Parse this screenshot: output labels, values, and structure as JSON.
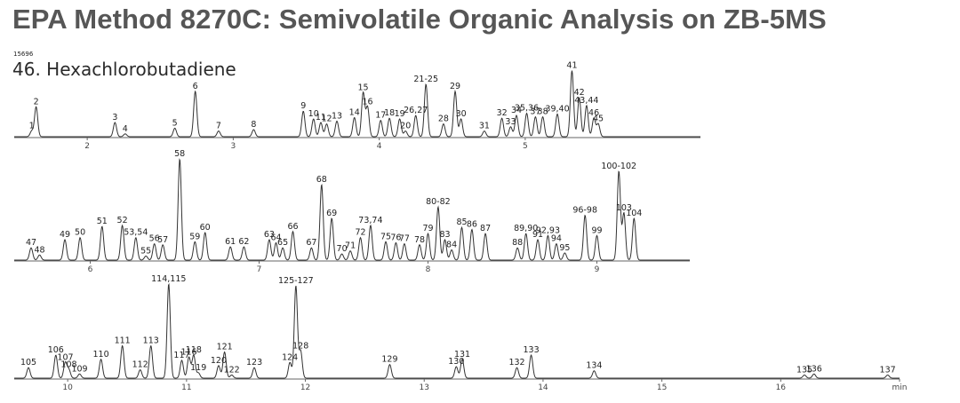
{
  "title": "EPA Method 8270C: Semivolatile Organic Analysis on ZB-5MS",
  "sample_id": "15696",
  "compound_label": "46. Hexachlorobutadiene",
  "colors": {
    "title": "#565656",
    "trace": "#333333",
    "axis": "#666666"
  },
  "chart_data": [
    {
      "type": "line",
      "panel": 1,
      "x_range": [
        1.5,
        6.2
      ],
      "x_ticks": [
        {
          "x": 2,
          "label": "2"
        },
        {
          "x": 3,
          "label": "3"
        },
        {
          "x": 4,
          "label": "4"
        },
        {
          "x": 5,
          "label": "5"
        }
      ],
      "peaks": [
        {
          "label": "1",
          "rt": 1.62,
          "h": 0.08
        },
        {
          "label": "2",
          "rt": 1.65,
          "h": 0.42
        },
        {
          "label": "3",
          "rt": 2.19,
          "h": 0.2
        },
        {
          "label": "4",
          "rt": 2.26,
          "h": 0.04
        },
        {
          "label": "5",
          "rt": 2.6,
          "h": 0.12
        },
        {
          "label": "6",
          "rt": 2.74,
          "h": 0.64
        },
        {
          "label": "7",
          "rt": 2.9,
          "h": 0.08
        },
        {
          "label": "8",
          "rt": 3.14,
          "h": 0.1
        },
        {
          "label": "9",
          "rt": 3.48,
          "h": 0.36
        },
        {
          "label": "10",
          "rt": 3.55,
          "h": 0.25
        },
        {
          "label": "11",
          "rt": 3.6,
          "h": 0.2
        },
        {
          "label": "12",
          "rt": 3.64,
          "h": 0.18
        },
        {
          "label": "13",
          "rt": 3.71,
          "h": 0.22
        },
        {
          "label": "14",
          "rt": 3.83,
          "h": 0.27
        },
        {
          "label": "15",
          "rt": 3.89,
          "h": 0.62
        },
        {
          "label": "16",
          "rt": 3.92,
          "h": 0.42
        },
        {
          "label": "17",
          "rt": 4.01,
          "h": 0.23
        },
        {
          "label": "18",
          "rt": 4.07,
          "h": 0.26
        },
        {
          "label": "19",
          "rt": 4.14,
          "h": 0.25
        },
        {
          "label": "20",
          "rt": 4.18,
          "h": 0.08
        },
        {
          "label": "21-25",
          "rt": 4.32,
          "h": 0.74
        },
        {
          "label": "26,27",
          "rt": 4.25,
          "h": 0.3
        },
        {
          "label": "28",
          "rt": 4.44,
          "h": 0.18
        },
        {
          "label": "29",
          "rt": 4.52,
          "h": 0.64
        },
        {
          "label": "30",
          "rt": 4.56,
          "h": 0.25
        },
        {
          "label": "31",
          "rt": 4.72,
          "h": 0.08
        },
        {
          "label": "32",
          "rt": 4.84,
          "h": 0.26
        },
        {
          "label": "33",
          "rt": 4.9,
          "h": 0.14
        },
        {
          "label": "34",
          "rt": 4.94,
          "h": 0.3
        },
        {
          "label": "35,36",
          "rt": 5.01,
          "h": 0.33
        },
        {
          "label": "37",
          "rt": 5.07,
          "h": 0.28
        },
        {
          "label": "38",
          "rt": 5.12,
          "h": 0.28
        },
        {
          "label": "39,40",
          "rt": 5.22,
          "h": 0.32
        },
        {
          "label": "41",
          "rt": 5.32,
          "h": 0.93
        },
        {
          "label": "42",
          "rt": 5.37,
          "h": 0.55
        },
        {
          "label": "43,44",
          "rt": 5.42,
          "h": 0.44
        },
        {
          "label": "46",
          "rt": 5.47,
          "h": 0.26
        },
        {
          "label": "45",
          "rt": 5.5,
          "h": 0.18
        }
      ]
    },
    {
      "type": "line",
      "panel": 2,
      "x_range": [
        5.55,
        9.55
      ],
      "x_ticks": [
        {
          "x": 6,
          "label": "6"
        },
        {
          "x": 7,
          "label": "7"
        },
        {
          "x": 8,
          "label": "8"
        },
        {
          "x": 9,
          "label": "9"
        }
      ],
      "peaks": [
        {
          "label": "47",
          "rt": 5.65,
          "h": 0.12
        },
        {
          "label": "48",
          "rt": 5.7,
          "h": 0.05
        },
        {
          "label": "49",
          "rt": 5.85,
          "h": 0.2
        },
        {
          "label": "50",
          "rt": 5.94,
          "h": 0.22
        },
        {
          "label": "51",
          "rt": 6.07,
          "h": 0.33
        },
        {
          "label": "52",
          "rt": 6.19,
          "h": 0.34
        },
        {
          "label": "53,54",
          "rt": 6.27,
          "h": 0.22
        },
        {
          "label": "55",
          "rt": 6.33,
          "h": 0.04
        },
        {
          "label": "56",
          "rt": 6.38,
          "h": 0.16
        },
        {
          "label": "57",
          "rt": 6.43,
          "h": 0.15
        },
        {
          "label": "58",
          "rt": 6.53,
          "h": 0.99
        },
        {
          "label": "59",
          "rt": 6.62,
          "h": 0.18
        },
        {
          "label": "60",
          "rt": 6.68,
          "h": 0.27
        },
        {
          "label": "61",
          "rt": 6.83,
          "h": 0.13
        },
        {
          "label": "62",
          "rt": 6.91,
          "h": 0.13
        },
        {
          "label": "63",
          "rt": 7.06,
          "h": 0.2
        },
        {
          "label": "64",
          "rt": 7.1,
          "h": 0.17
        },
        {
          "label": "65",
          "rt": 7.14,
          "h": 0.12
        },
        {
          "label": "66",
          "rt": 7.2,
          "h": 0.28
        },
        {
          "label": "67",
          "rt": 7.31,
          "h": 0.12
        },
        {
          "label": "68",
          "rt": 7.37,
          "h": 0.74
        },
        {
          "label": "69",
          "rt": 7.43,
          "h": 0.41
        },
        {
          "label": "70",
          "rt": 7.49,
          "h": 0.06
        },
        {
          "label": "71",
          "rt": 7.54,
          "h": 0.09
        },
        {
          "label": "72",
          "rt": 7.6,
          "h": 0.22
        },
        {
          "label": "73,74",
          "rt": 7.66,
          "h": 0.34
        },
        {
          "label": "75",
          "rt": 7.75,
          "h": 0.18
        },
        {
          "label": "76",
          "rt": 7.81,
          "h": 0.17
        },
        {
          "label": "77",
          "rt": 7.86,
          "h": 0.16
        },
        {
          "label": "78",
          "rt": 7.95,
          "h": 0.15
        },
        {
          "label": "79",
          "rt": 8.0,
          "h": 0.26
        },
        {
          "label": "80-82",
          "rt": 8.06,
          "h": 0.52
        },
        {
          "label": "83",
          "rt": 8.1,
          "h": 0.2
        },
        {
          "label": "84",
          "rt": 8.14,
          "h": 0.1
        },
        {
          "label": "85",
          "rt": 8.2,
          "h": 0.32
        },
        {
          "label": "86",
          "rt": 8.26,
          "h": 0.3
        },
        {
          "label": "87",
          "rt": 8.34,
          "h": 0.26
        },
        {
          "label": "88",
          "rt": 8.53,
          "h": 0.12
        },
        {
          "label": "89,90",
          "rt": 8.58,
          "h": 0.26
        },
        {
          "label": "91",
          "rt": 8.65,
          "h": 0.2
        },
        {
          "label": "92,93",
          "rt": 8.71,
          "h": 0.24
        },
        {
          "label": "94",
          "rt": 8.76,
          "h": 0.16
        },
        {
          "label": "95",
          "rt": 8.81,
          "h": 0.07
        },
        {
          "label": "96-98",
          "rt": 8.93,
          "h": 0.44
        },
        {
          "label": "99",
          "rt": 9.0,
          "h": 0.24
        },
        {
          "label": "100-102",
          "rt": 9.13,
          "h": 0.87
        },
        {
          "label": "103",
          "rt": 9.16,
          "h": 0.46
        },
        {
          "label": "104",
          "rt": 9.22,
          "h": 0.41
        }
      ]
    },
    {
      "type": "line",
      "panel": 3,
      "x_range": [
        9.55,
        17.0
      ],
      "x_ticks": [
        {
          "x": 10,
          "label": "10"
        },
        {
          "x": 11,
          "label": "11"
        },
        {
          "x": 12,
          "label": "12"
        },
        {
          "x": 13,
          "label": "13"
        },
        {
          "x": 14,
          "label": "14"
        },
        {
          "x": 15,
          "label": "15"
        },
        {
          "x": 16,
          "label": "16"
        },
        {
          "x": 17,
          "label": "min"
        }
      ],
      "peaks": [
        {
          "label": "105",
          "rt": 9.67,
          "h": 0.1
        },
        {
          "label": "106",
          "rt": 9.9,
          "h": 0.22
        },
        {
          "label": "107",
          "rt": 9.98,
          "h": 0.15
        },
        {
          "label": "108",
          "rt": 10.01,
          "h": 0.08
        },
        {
          "label": "109",
          "rt": 10.1,
          "h": 0.04
        },
        {
          "label": "110",
          "rt": 10.28,
          "h": 0.18
        },
        {
          "label": "111",
          "rt": 10.46,
          "h": 0.31
        },
        {
          "label": "112",
          "rt": 10.61,
          "h": 0.08
        },
        {
          "label": "113",
          "rt": 10.7,
          "h": 0.31
        },
        {
          "label": "114,115",
          "rt": 10.85,
          "h": 0.9
        },
        {
          "label": "117",
          "rt": 10.96,
          "h": 0.17
        },
        {
          "label": "116",
          "rt": 11.02,
          "h": 0.2
        },
        {
          "label": "118",
          "rt": 11.06,
          "h": 0.22
        },
        {
          "label": "119",
          "rt": 11.1,
          "h": 0.05
        },
        {
          "label": "120",
          "rt": 11.27,
          "h": 0.12
        },
        {
          "label": "121",
          "rt": 11.32,
          "h": 0.25
        },
        {
          "label": "122",
          "rt": 11.38,
          "h": 0.03
        },
        {
          "label": "123",
          "rt": 11.57,
          "h": 0.1
        },
        {
          "label": "124",
          "rt": 11.87,
          "h": 0.15
        },
        {
          "label": "125-127",
          "rt": 11.92,
          "h": 0.88
        },
        {
          "label": "128",
          "rt": 11.96,
          "h": 0.26
        },
        {
          "label": "129",
          "rt": 12.71,
          "h": 0.13
        },
        {
          "label": "130",
          "rt": 13.27,
          "h": 0.11
        },
        {
          "label": "131",
          "rt": 13.32,
          "h": 0.18
        },
        {
          "label": "132",
          "rt": 13.78,
          "h": 0.1
        },
        {
          "label": "133",
          "rt": 13.9,
          "h": 0.22
        },
        {
          "label": "134",
          "rt": 14.43,
          "h": 0.07
        },
        {
          "label": "135",
          "rt": 16.2,
          "h": 0.03
        },
        {
          "label": "136",
          "rt": 16.28,
          "h": 0.04
        },
        {
          "label": "137",
          "rt": 16.9,
          "h": 0.03
        }
      ]
    }
  ]
}
